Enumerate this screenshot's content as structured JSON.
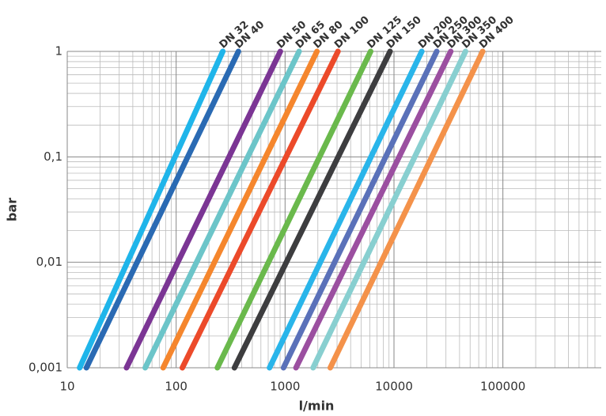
{
  "chart_data": {
    "type": "line",
    "log_x": true,
    "log_y": true,
    "grid": true,
    "xlabel": "l/min",
    "ylabel": "bar",
    "xlim": [
      10,
      800000
    ],
    "ylim": [
      0.001,
      1
    ],
    "xticks": [
      10,
      100,
      1000,
      10000,
      100000
    ],
    "yticks": [
      {
        "value": 0.001,
        "label": "0,001"
      },
      {
        "value": 0.01,
        "label": "0,01"
      },
      {
        "value": 0.1,
        "label": "0,1"
      },
      1
    ],
    "series": [
      {
        "name": "DN 32",
        "color": "#1fb5ea",
        "x": [
          13,
          268
        ],
        "values": [
          0.001,
          1
        ]
      },
      {
        "name": "DN 40",
        "color": "#2a6ab3",
        "x": [
          15,
          373
        ],
        "values": [
          0.001,
          1
        ]
      },
      {
        "name": "DN 50",
        "color": "#7b3594",
        "x": [
          35,
          905
        ],
        "values": [
          0.001,
          1
        ]
      },
      {
        "name": "DN 65",
        "color": "#6cc5c9",
        "x": [
          52,
          1345
        ],
        "values": [
          0.001,
          1
        ]
      },
      {
        "name": "DN 80",
        "color": "#f5862d",
        "x": [
          76,
          1963
        ],
        "values": [
          0.001,
          1
        ]
      },
      {
        "name": "DN 100",
        "color": "#ec4a2a",
        "x": [
          114,
          3060
        ],
        "values": [
          0.001,
          1
        ]
      },
      {
        "name": "DN 125",
        "color": "#6ab94c",
        "x": [
          239,
          6106
        ],
        "values": [
          0.001,
          1
        ]
      },
      {
        "name": "DN 150",
        "color": "#3d3d3f",
        "x": [
          343,
          9210
        ],
        "values": [
          0.001,
          1
        ]
      },
      {
        "name": "DN 200",
        "color": "#29b5ea",
        "x": [
          720,
          18000
        ],
        "values": [
          0.001,
          1
        ]
      },
      {
        "name": "DN 250",
        "color": "#5a71b9",
        "x": [
          968,
          24700
        ],
        "values": [
          0.001,
          1
        ]
      },
      {
        "name": "DN 300",
        "color": "#9b4fa0",
        "x": [
          1260,
          33200
        ],
        "values": [
          0.001,
          1
        ]
      },
      {
        "name": "DN 350",
        "color": "#88cfd0",
        "x": [
          1810,
          45400
        ],
        "values": [
          0.001,
          1
        ]
      },
      {
        "name": "DN 400",
        "color": "#f4924a",
        "x": [
          2600,
          65200
        ],
        "values": [
          0.001,
          1
        ]
      }
    ]
  }
}
